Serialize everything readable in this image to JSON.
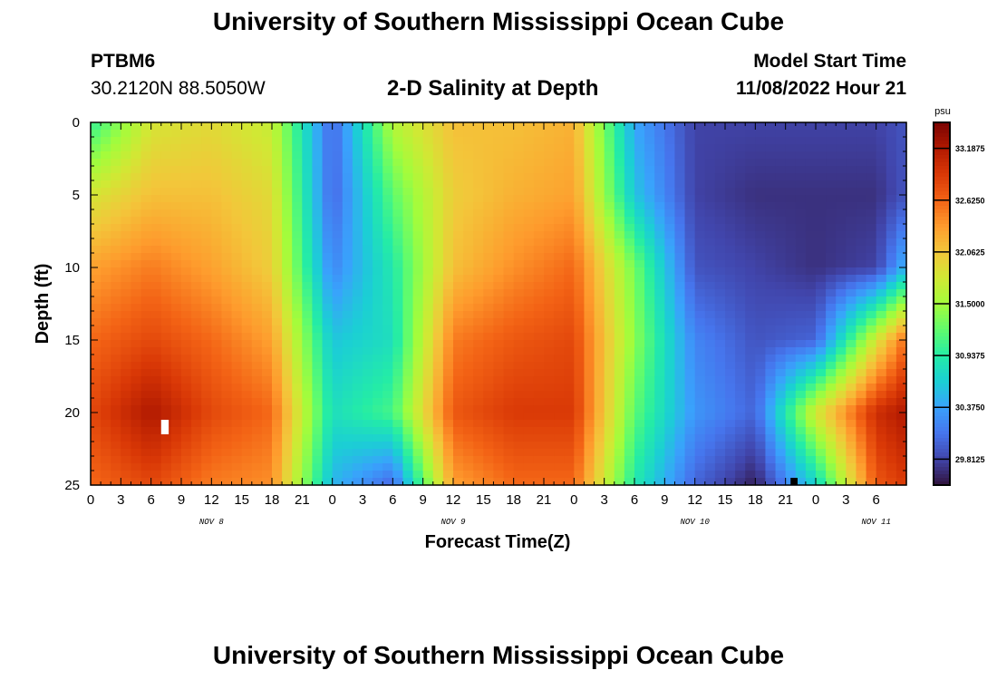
{
  "header": {
    "title": "University of Southern Mississippi Ocean Cube",
    "station": "PTBM6",
    "coordinates": "30.2120N  88.5050W",
    "plot_title": "2-D Salinity at Depth",
    "start_label": "Model Start Time",
    "start_value": "11/08/2022 Hour 21"
  },
  "footer": {
    "title": "University of Southern Mississippi Ocean Cube"
  },
  "chart_data": {
    "type": "heatmap",
    "title": "2-D Salinity at Depth",
    "xlabel": "Forecast Time(Z)",
    "ylabel": "Depth (ft)",
    "x_range_hours": [
      0,
      81
    ],
    "ylim": [
      0,
      25
    ],
    "y_ticks": [
      0,
      5,
      10,
      15,
      20,
      25
    ],
    "x_tick_labels": [
      "0",
      "3",
      "6",
      "9",
      "12",
      "15",
      "18",
      "21",
      "0",
      "3",
      "6",
      "9",
      "12",
      "15",
      "18",
      "21",
      "0",
      "3",
      "6",
      "9",
      "12",
      "15",
      "18",
      "21",
      "0",
      "3",
      "6"
    ],
    "day_labels": [
      {
        "label": "NOV 8",
        "hour": 12
      },
      {
        "label": "NOV 9",
        "hour": 36
      },
      {
        "label": "NOV 10",
        "hour": 60
      },
      {
        "label": "NOV 11",
        "hour": 78
      }
    ],
    "colorbar": {
      "unit": "psu",
      "min": 29.53,
      "max": 33.47,
      "tick_values": [
        33.1875,
        32.625,
        32.0625,
        31.5,
        30.9375,
        30.375,
        29.8125
      ],
      "tick_labels": [
        "33.1875",
        "32.6250",
        "32.0625",
        "31.5000",
        "30.9375",
        "30.3750",
        "29.8125"
      ],
      "colors": [
        "#30123b",
        "#4145ab",
        "#4675ed",
        "#39a2fc",
        "#1bcfd4",
        "#24eca6",
        "#61fc6c",
        "#a4fc3b",
        "#d1e834",
        "#f3c63a",
        "#fe9b2d",
        "#f36315",
        "#d93806",
        "#b11901",
        "#7a0402"
      ]
    },
    "salinity_grid": {
      "hours": [
        0,
        6,
        12,
        18,
        24,
        30,
        36,
        42,
        48,
        54,
        60,
        66,
        72,
        78,
        81
      ],
      "depths": [
        0,
        5,
        10,
        15,
        20,
        25
      ],
      "values": [
        [
          31.0,
          31.8,
          31.9,
          31.7,
          30.0,
          31.6,
          32.1,
          32.1,
          32.2,
          30.4,
          29.8,
          29.8,
          29.8,
          29.8,
          29.9
        ],
        [
          31.8,
          32.1,
          32.1,
          31.9,
          30.0,
          31.2,
          32.0,
          32.2,
          32.3,
          30.6,
          29.8,
          29.7,
          29.7,
          29.7,
          29.9
        ],
        [
          32.3,
          32.5,
          32.3,
          32.0,
          30.2,
          30.9,
          32.1,
          32.4,
          32.6,
          31.3,
          29.9,
          29.8,
          29.7,
          29.8,
          30.5
        ],
        [
          32.6,
          32.8,
          32.6,
          32.3,
          30.6,
          30.8,
          32.5,
          32.7,
          32.8,
          31.4,
          30.2,
          29.9,
          30.0,
          31.8,
          32.6
        ],
        [
          32.8,
          33.2,
          32.8,
          32.6,
          30.8,
          31.1,
          32.7,
          32.9,
          32.9,
          31.2,
          30.3,
          30.0,
          31.8,
          33.0,
          33.2
        ],
        [
          32.6,
          32.8,
          32.5,
          32.4,
          30.5,
          30.0,
          32.3,
          32.6,
          32.6,
          30.9,
          30.0,
          29.6,
          30.7,
          32.7,
          32.9
        ]
      ]
    }
  }
}
